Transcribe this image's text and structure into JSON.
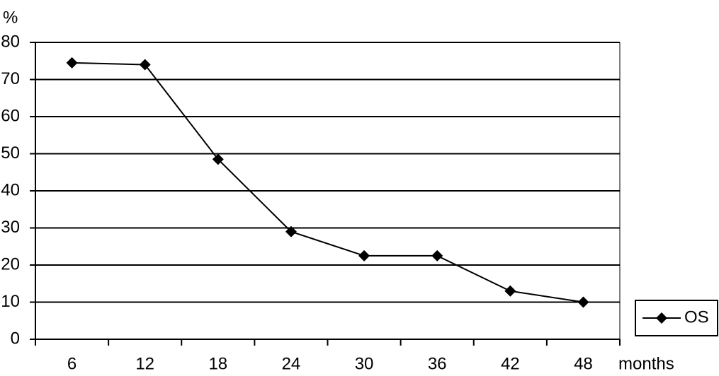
{
  "chart_data": {
    "type": "line",
    "y_label": "%",
    "x_label": "months",
    "categories": [
      "6",
      "12",
      "18",
      "24",
      "30",
      "36",
      "42",
      "48"
    ],
    "series": [
      {
        "name": "OS",
        "color": "#000000",
        "values": [
          74.5,
          74,
          48.5,
          29,
          22.5,
          22.5,
          13,
          10
        ]
      }
    ],
    "ylim": [
      0,
      80
    ],
    "yticks": [
      0,
      10,
      20,
      30,
      40,
      50,
      60,
      70,
      80
    ],
    "grid": true,
    "legend": "bottom-right"
  }
}
